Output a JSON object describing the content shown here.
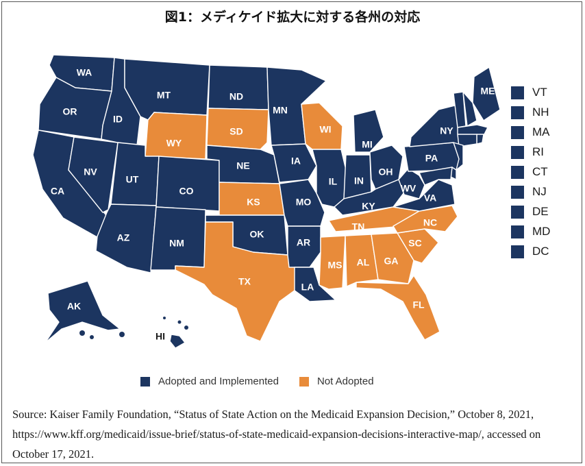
{
  "title": "図1：メディケイド拡大に対する各州の対応",
  "colors": {
    "adopted": "#1c3560",
    "not_adopted": "#e88b3a",
    "border": "#ffffff"
  },
  "legend": [
    {
      "label": "Adopted and Implemented",
      "color": "#1c3560"
    },
    {
      "label": "Not Adopted",
      "color": "#e88b3a"
    }
  ],
  "small_states": [
    "VT",
    "NH",
    "MA",
    "RI",
    "CT",
    "NJ",
    "DE",
    "MD",
    "DC"
  ],
  "states": {
    "WA": "adopted",
    "OR": "adopted",
    "CA": "adopted",
    "ID": "adopted",
    "NV": "adopted",
    "MT": "adopted",
    "WY": "not_adopted",
    "UT": "adopted",
    "AZ": "adopted",
    "CO": "adopted",
    "NM": "adopted",
    "ND": "adopted",
    "SD": "not_adopted",
    "NE": "adopted",
    "KS": "not_adopted",
    "OK": "adopted",
    "TX": "not_adopted",
    "MN": "adopted",
    "IA": "adopted",
    "MO": "adopted",
    "AR": "adopted",
    "LA": "adopted",
    "WI": "not_adopted",
    "IL": "adopted",
    "MI": "adopted",
    "IN": "adopted",
    "OH": "adopted",
    "KY": "adopted",
    "TN": "not_adopted",
    "MS": "not_adopted",
    "AL": "not_adopted",
    "GA": "not_adopted",
    "FL": "not_adopted",
    "SC": "not_adopted",
    "NC": "not_adopted",
    "VA": "adopted",
    "WV": "adopted",
    "PA": "adopted",
    "NY": "adopted",
    "ME": "adopted",
    "VT": "adopted",
    "NH": "adopted",
    "MA": "adopted",
    "RI": "adopted",
    "CT": "adopted",
    "NJ": "adopted",
    "DE": "adopted",
    "MD": "adopted",
    "DC": "adopted",
    "AK": "adopted",
    "HI": "adopted"
  },
  "source": "Source: Kaiser Family Foundation, “Status of State Action on the Medicaid Expansion Decision,” October 8, 2021, https://www.kff.org/medicaid/issue-brief/status-of-state-medicaid-expansion-decisions-interactive-map/, accessed on October 17, 2021."
}
